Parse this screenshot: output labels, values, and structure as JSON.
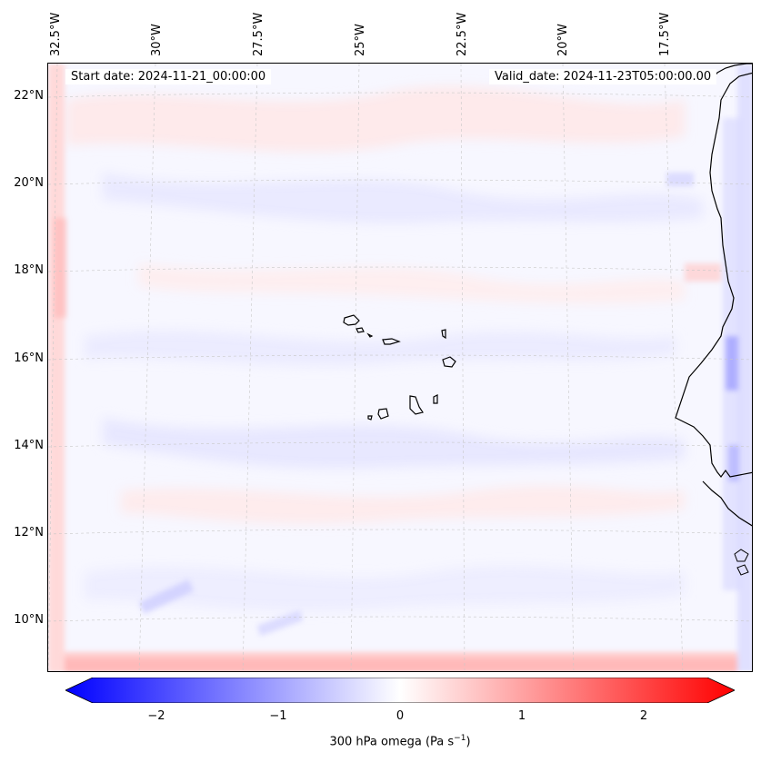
{
  "map": {
    "start_date": "Start date: 2024-11-21_00:00:00",
    "valid_date": "Valid_date: 2024-11-23T05:00:00.00",
    "lon_labels": [
      "32.5°W",
      "30°W",
      "27.5°W",
      "25°W",
      "22.5°W",
      "20°W",
      "17.5°W"
    ],
    "lat_labels": [
      "22°N",
      "20°N",
      "18°N",
      "16°N",
      "14°N",
      "12°N",
      "10°N"
    ],
    "region": "Cape Verde and West African coast",
    "variable": "300 hPa omega"
  },
  "colorbar": {
    "min": -2.6,
    "max": 2.6,
    "ticks": [
      {
        "value": -2,
        "label": "−2"
      },
      {
        "value": -1,
        "label": "−1"
      },
      {
        "value": 0,
        "label": "0"
      },
      {
        "value": 1,
        "label": "1"
      },
      {
        "value": 2,
        "label": "2"
      }
    ],
    "label": "300 hPa omega (Pa s",
    "label_sup": "−1",
    "label_end": ")",
    "low_color": "#0000ff",
    "mid_color": "#ffffff",
    "high_color": "#ff0000"
  }
}
